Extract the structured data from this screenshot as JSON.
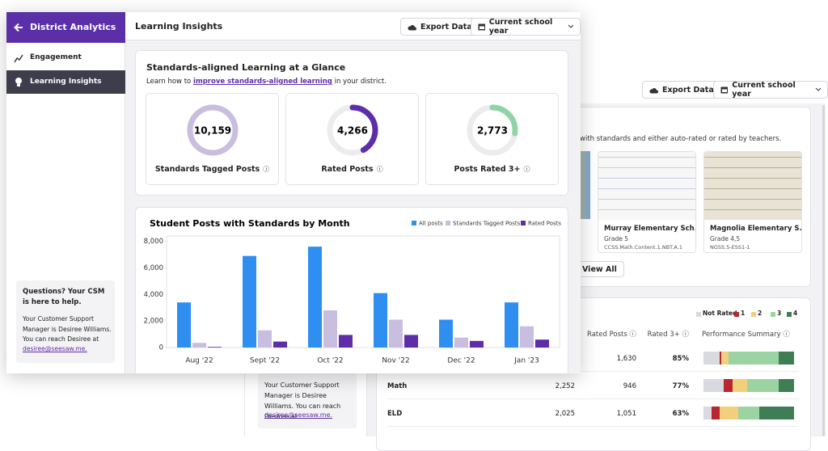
{
  "sidebar": {
    "title": "District Analytics",
    "items": [
      "Engagement",
      "Learning Insights"
    ],
    "help": {
      "title": "Questions? Your CSM is here to help.",
      "text": "Your Customer Support Manager is Desiree Williams. You can reach Desiree at",
      "email": "desiree@seesaw.me."
    }
  },
  "header": {
    "title": "Learning Insights",
    "export": "Export Data",
    "period": "Current school year"
  },
  "glance": {
    "title": "Standards-aligned Learning at a Glance",
    "subtitle_before": "Learn how to",
    "link": "improve standards-aligned learning",
    "subtitle_after": "in your district.",
    "cards": [
      {
        "label": "Standards Tagged Posts",
        "value": 10159,
        "value_label": "10,159",
        "color": "#c9bde0"
      },
      {
        "label": "Rated Posts",
        "value": 4266,
        "value_label": "4,266",
        "color": "#5e2ea8"
      },
      {
        "label": "Posts Rated 3+",
        "value": 2773,
        "value_label": "2,773",
        "color": "#8fd4a6"
      }
    ]
  },
  "chart_data": {
    "type": "bar",
    "title": "Student Posts with Standards by Month",
    "categories": [
      "Aug '22",
      "Sept '22",
      "Oct '22",
      "Nov '22",
      "Dec '22",
      "Jan '23"
    ],
    "series": [
      {
        "name": "All posts",
        "color": "#2f8ff0",
        "values": [
          3400,
          6900,
          7600,
          4100,
          2100,
          3400
        ]
      },
      {
        "name": "Standards Tagged Posts",
        "color": "#c9bde0",
        "values": [
          350,
          1300,
          2800,
          2100,
          750,
          1600
        ]
      },
      {
        "name": "Rated Posts",
        "color": "#5e2ea8",
        "values": [
          50,
          450,
          950,
          950,
          500,
          600
        ]
      }
    ],
    "ylim": [
      0,
      8400
    ],
    "yticks": [
      0,
      {
        "value": 2000,
        "label": "2,000"
      },
      {
        "value": 4000,
        "label": "4,000"
      },
      {
        "value": 6000,
        "label": "6,000"
      },
      {
        "value": 8000,
        "label": "8,000"
      }
    ],
    "legend": "top-right"
  },
  "background": {
    "export": "Export Data",
    "period": "Current school year",
    "note": "with standards and either auto-rated or rated by teachers.",
    "samples": [
      {
        "school": "Murray Elementary Sch...",
        "grade": "Grade 5",
        "standard": "CCSS.Math.Content.1.NBT.A.1"
      },
      {
        "school": "Magnolia Elementary S...",
        "grade": "Grade 4,5",
        "standard": "NGSS.5-ESS1-1"
      }
    ],
    "view_all": "View All",
    "legend": [
      {
        "name": "Not Rated",
        "color": "#d9d9e0"
      },
      {
        "name": "1",
        "color": "#b8272f"
      },
      {
        "name": "2",
        "color": "#f1cf7d"
      },
      {
        "name": "3",
        "color": "#9bd3a3"
      },
      {
        "name": "4",
        "color": "#3f7d55"
      }
    ],
    "columns": [
      "Rated Posts",
      "Rated 3+",
      "Performance Summary"
    ],
    "rows": [
      {
        "rated": "1,630",
        "rated3": "85%",
        "summary": [
          18,
          2,
          8,
          55,
          17
        ]
      },
      {
        "subject": "Math",
        "posts": "2,252",
        "rated": "946",
        "rated3": "77%",
        "summary": [
          22,
          10,
          16,
          35,
          17
        ]
      },
      {
        "subject": "ELD",
        "posts": "2,025",
        "rated": "1,051",
        "rated3": "63%",
        "summary": [
          9,
          9,
          20,
          24,
          38
        ]
      }
    ]
  }
}
